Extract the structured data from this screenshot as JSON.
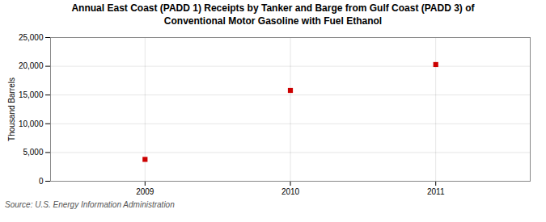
{
  "chart_data": {
    "type": "scatter",
    "title": "Annual East Coast (PADD 1) Receipts by Tanker and Barge from Gulf Coast (PADD 3) of\nConventional Motor Gasoline with Fuel Ethanol",
    "ylabel": "Thousand Barrels",
    "source": "Source: U.S. Energy Information Administration",
    "x": [
      2009,
      2010,
      2011
    ],
    "values": [
      3800,
      15800,
      20300
    ],
    "color": "#cc0000",
    "marker": "square",
    "xlim": [
      2008.35,
      2011.65
    ],
    "ylim": [
      0,
      25000
    ],
    "xticks": [
      2009,
      2010,
      2011
    ],
    "yticks": [
      0,
      {
        "value": 5000,
        "label": "5,000"
      },
      {
        "value": 10000,
        "label": "10,000"
      },
      {
        "value": 15000,
        "label": "15,000"
      },
      {
        "value": 20000,
        "label": "20,000"
      },
      {
        "value": 25000,
        "label": "25,000"
      }
    ],
    "grid": true
  }
}
